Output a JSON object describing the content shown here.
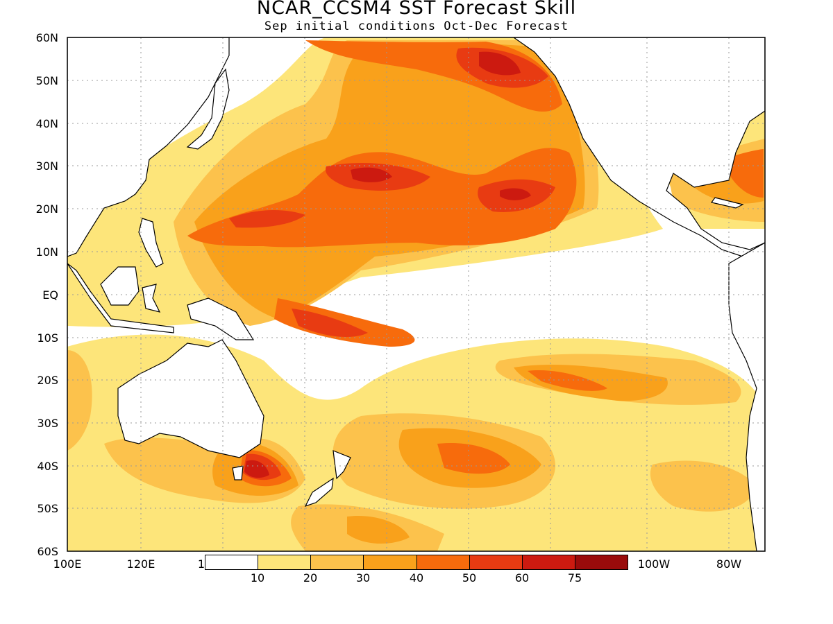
{
  "header": {
    "title": "NCAR_CCSM4  SST  Forecast  Skill",
    "subtitle": "Sep  initial  conditions   Oct-Dec  Forecast"
  },
  "axes": {
    "lat_labels": [
      "60N",
      "50N",
      "40N",
      "30N",
      "20N",
      "10N",
      "EQ",
      "10S",
      "20S",
      "30S",
      "40S",
      "50S",
      "60S"
    ],
    "lon_labels": [
      "100E",
      "120E",
      "1",
      "100W",
      "80W"
    ]
  },
  "colorbar": {
    "labels": [
      "10",
      "20",
      "30",
      "40",
      "50",
      "60",
      "75"
    ],
    "colors": [
      "#ffffff",
      "#fde57a",
      "#fcc24c",
      "#f9a11b",
      "#f76b0c",
      "#e83b12",
      "#cc1a10",
      "#9a0b0b"
    ]
  },
  "chart_data": {
    "type": "heatmap",
    "title": "NCAR_CCSM4  SST  Forecast  Skill",
    "subtitle": "Sep  initial  conditions   Oct-Dec  Forecast",
    "xlim": [
      "100E",
      "70W"
    ],
    "ylim": [
      "60S",
      "60N"
    ],
    "grid": true,
    "color_levels": [
      10,
      20,
      30,
      40,
      50,
      60,
      75
    ]
  }
}
